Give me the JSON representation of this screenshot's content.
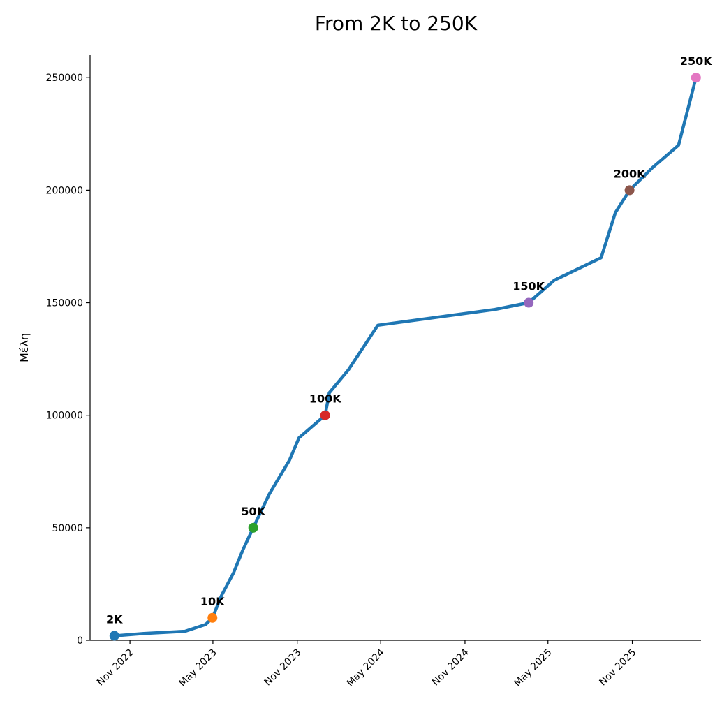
{
  "chart_data": {
    "type": "line",
    "title": "From 2K to 250K",
    "xlabel": "",
    "ylabel": "Μέλη",
    "line_color": "#1f77b4",
    "x_ticks": [
      {
        "date": "2022-11-01",
        "label": "Nov 2022"
      },
      {
        "date": "2023-05-01",
        "label": "May 2023"
      },
      {
        "date": "2023-11-01",
        "label": "Nov 2023"
      },
      {
        "date": "2024-05-01",
        "label": "May 2024"
      },
      {
        "date": "2024-11-01",
        "label": "Nov 2024"
      },
      {
        "date": "2025-05-01",
        "label": "May 2025"
      },
      {
        "date": "2025-11-01",
        "label": "Nov 2025"
      }
    ],
    "y_ticks": [
      0,
      50000,
      100000,
      150000,
      200000,
      250000
    ],
    "xlim": [
      "2022-08-06",
      "2026-03-31"
    ],
    "ylim": [
      0,
      260000
    ],
    "grid": false,
    "series": [
      {
        "points": [
          {
            "x": "2022-09-28",
            "y": 2000
          },
          {
            "x": "2022-12-01",
            "y": 3000
          },
          {
            "x": "2023-03-01",
            "y": 4000
          },
          {
            "x": "2023-04-15",
            "y": 7000
          },
          {
            "x": "2023-04-30",
            "y": 10000
          },
          {
            "x": "2023-05-20",
            "y": 20000
          },
          {
            "x": "2023-06-15",
            "y": 30000
          },
          {
            "x": "2023-07-05",
            "y": 40000
          },
          {
            "x": "2023-07-28",
            "y": 50000
          },
          {
            "x": "2023-09-01",
            "y": 65000
          },
          {
            "x": "2023-10-15",
            "y": 80000
          },
          {
            "x": "2023-11-05",
            "y": 90000
          },
          {
            "x": "2024-01-01",
            "y": 100000
          },
          {
            "x": "2024-01-10",
            "y": 110000
          },
          {
            "x": "2024-02-20",
            "y": 120000
          },
          {
            "x": "2024-04-25",
            "y": 140000
          },
          {
            "x": "2025-01-05",
            "y": 147000
          },
          {
            "x": "2025-03-20",
            "y": 150000
          },
          {
            "x": "2025-05-15",
            "y": 160000
          },
          {
            "x": "2025-08-25",
            "y": 170000
          },
          {
            "x": "2025-09-25",
            "y": 190000
          },
          {
            "x": "2025-10-26",
            "y": 200000
          },
          {
            "x": "2025-12-15",
            "y": 210000
          },
          {
            "x": "2026-02-10",
            "y": 220000
          },
          {
            "x": "2026-03-20",
            "y": 250000
          }
        ]
      }
    ],
    "milestones": [
      {
        "x": "2022-09-28",
        "y": 2000,
        "label": "2K",
        "color": "#1f77b4"
      },
      {
        "x": "2023-04-30",
        "y": 10000,
        "label": "10K",
        "color": "#ff7f0e"
      },
      {
        "x": "2023-07-28",
        "y": 50000,
        "label": "50K",
        "color": "#2ca02c"
      },
      {
        "x": "2024-01-01",
        "y": 100000,
        "label": "100K",
        "color": "#d62728"
      },
      {
        "x": "2025-03-20",
        "y": 150000,
        "label": "150K",
        "color": "#9467bd"
      },
      {
        "x": "2025-10-26",
        "y": 200000,
        "label": "200K",
        "color": "#8c564b"
      },
      {
        "x": "2026-03-20",
        "y": 250000,
        "label": "250K",
        "color": "#e377c2"
      }
    ]
  }
}
